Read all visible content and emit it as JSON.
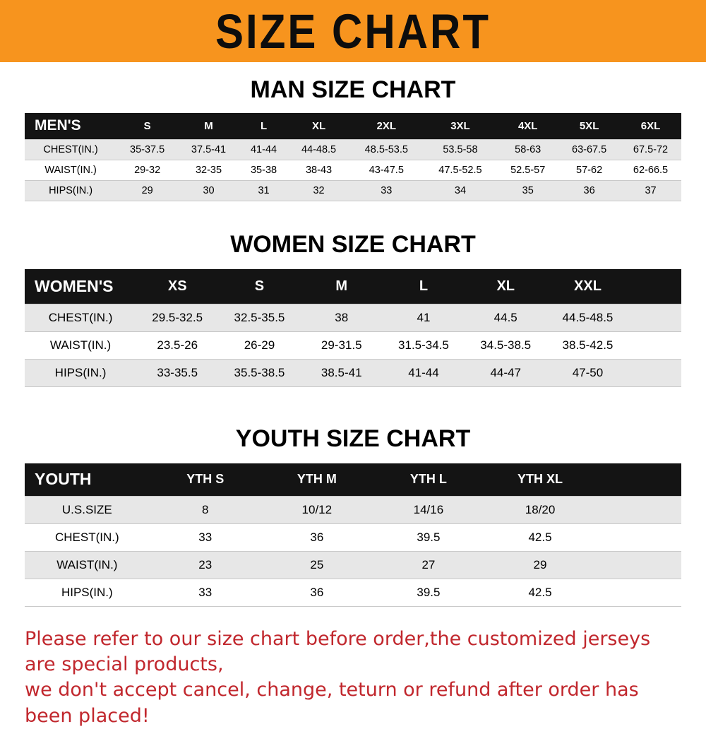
{
  "colors": {
    "banner_bg": "#F7941E",
    "table_header_bg": "#141414",
    "row_stripe": "#e7e7e7",
    "footer_text": "#C1272D"
  },
  "banner": {
    "title": "SIZE CHART"
  },
  "sections": [
    {
      "heading": "MAN SIZE CHART",
      "table": {
        "name": "mens",
        "label": "MEN'S",
        "columns": [
          "S",
          "M",
          "L",
          "XL",
          "2XL",
          "3XL",
          "4XL",
          "5XL",
          "6XL"
        ],
        "spacer": false,
        "rows": [
          {
            "label": "CHEST(IN.)",
            "values": [
              "35-37.5",
              "37.5-41",
              "41-44",
              "44-48.5",
              "48.5-53.5",
              "53.5-58",
              "58-63",
              "63-67.5",
              "67.5-72"
            ]
          },
          {
            "label": "WAIST(IN.)",
            "values": [
              "29-32",
              "32-35",
              "35-38",
              "38-43",
              "43-47.5",
              "47.5-52.5",
              "52.5-57",
              "57-62",
              "62-66.5"
            ]
          },
          {
            "label": "HIPS(IN.)",
            "values": [
              "29",
              "30",
              "31",
              "32",
              "33",
              "34",
              "35",
              "36",
              "37"
            ]
          }
        ]
      }
    },
    {
      "heading": "WOMEN SIZE CHART",
      "table": {
        "name": "womens",
        "label": "WOMEN'S",
        "columns": [
          "XS",
          "S",
          "M",
          "L",
          "XL",
          "XXL"
        ],
        "spacer": true,
        "rows": [
          {
            "label": "CHEST(IN.)",
            "values": [
              "29.5-32.5",
              "32.5-35.5",
              "38",
              "41",
              "44.5",
              "44.5-48.5"
            ]
          },
          {
            "label": "WAIST(IN.)",
            "values": [
              "23.5-26",
              "26-29",
              "29-31.5",
              "31.5-34.5",
              "34.5-38.5",
              "38.5-42.5"
            ]
          },
          {
            "label": "HIPS(IN.)",
            "values": [
              "33-35.5",
              "35.5-38.5",
              "38.5-41",
              "41-44",
              "44-47",
              "47-50"
            ]
          }
        ]
      }
    },
    {
      "heading": "YOUTH SIZE CHART",
      "table": {
        "name": "youth",
        "label": "YOUTH",
        "columns": [
          "YTH S",
          "YTH M",
          "YTH L",
          "YTH XL"
        ],
        "spacer": true,
        "rows": [
          {
            "label": "U.S.SIZE",
            "values": [
              "8",
              "10/12",
              "14/16",
              "18/20"
            ]
          },
          {
            "label": "CHEST(IN.)",
            "values": [
              "33",
              "36",
              "39.5",
              "42.5"
            ]
          },
          {
            "label": "WAIST(IN.)",
            "values": [
              "23",
              "25",
              "27",
              "29"
            ]
          },
          {
            "label": "HIPS(IN.)",
            "values": [
              "33",
              "36",
              "39.5",
              "42.5"
            ]
          }
        ]
      }
    }
  ],
  "footer": {
    "lines": [
      "Please refer to our size chart before order,the customized jerseys are special products,",
      "we don't accept cancel, change, teturn or refund after order has been placed!"
    ]
  }
}
